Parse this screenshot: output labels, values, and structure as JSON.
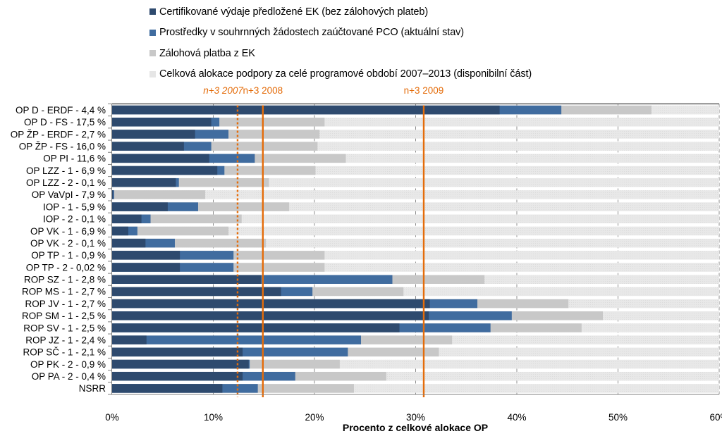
{
  "chart_data": {
    "type": "bar",
    "orientation": "horizontal",
    "stacking": "cumulative-overlay",
    "title": "",
    "xlabel": "Procento z celkové alokace OP",
    "ylabel": "",
    "xlim": [
      0,
      60
    ],
    "x_ticks": [
      0,
      10,
      20,
      30,
      40,
      50,
      60
    ],
    "x_tick_labels": [
      "0%",
      "10%",
      "20%",
      "30%",
      "40%",
      "50%",
      "60%"
    ],
    "grid": "vertical-dashed",
    "legend_position": "top",
    "categories": [
      "OP D - ERDF - 4,4 %",
      "OP D - FS - 17,5 %",
      "OP ŽP - ERDF - 2,7 %",
      "OP ŽP - FS - 16,0 %",
      "OP PI - 11,6 %",
      "OP LZZ - 1 - 6,9 %",
      "OP LZZ - 2 - 0,1 %",
      "OP VaVpI - 7,9 %",
      "IOP - 1 - 5,9 %",
      "IOP - 2 - 0,1 %",
      "OP VK - 1 - 6,9 %",
      "OP VK - 2 - 0,1 %",
      "OP TP - 1 - 0,9 %",
      "OP TP - 2 - 0,02 %",
      "ROP SZ - 1 - 2,8 %",
      "ROP MS - 1 - 2,7 %",
      "ROP JV - 1 - 2,7 %",
      "ROP SM - 1 - 2,5 %",
      "ROP SV - 1 - 2,5 %",
      "ROP JZ - 1 - 2,4 %",
      "ROP SČ - 1 - 2,1 %",
      "OP PK - 2 - 0,9 %",
      "OP PA - 2 - 0,4 %",
      "NSRR"
    ],
    "series": [
      {
        "name": "Certifikované výdaje předložené EK (bez zálohových plateb)",
        "color": "#2e4a6e",
        "cumulative_end_values": [
          38.3,
          9.8,
          8.2,
          7.1,
          9.6,
          10.4,
          6.3,
          0.1,
          5.5,
          2.9,
          1.6,
          3.3,
          6.7,
          6.7,
          14.7,
          16.7,
          31.4,
          31.3,
          28.4,
          3.4,
          12.9,
          13.5,
          12.9,
          10.9
        ]
      },
      {
        "name": "Prostředky v souhrnných žádostech zaúčtované PCO (aktuální stav)",
        "color": "#406c9f",
        "cumulative_end_values": [
          44.4,
          10.6,
          11.5,
          9.8,
          14.1,
          11.1,
          6.6,
          0.2,
          8.5,
          3.8,
          2.5,
          6.2,
          12.0,
          12.0,
          27.7,
          19.8,
          36.1,
          39.5,
          37.4,
          24.6,
          23.3,
          13.6,
          18.1,
          14.4
        ]
      },
      {
        "name": "Zálohová platba z EK",
        "color": "#c8c8c8",
        "cumulative_end_values": [
          53.3,
          21.0,
          20.5,
          20.3,
          23.1,
          20.1,
          15.5,
          9.2,
          17.5,
          12.8,
          11.5,
          15.2,
          21.0,
          21.0,
          36.8,
          28.8,
          45.1,
          48.5,
          46.4,
          33.6,
          32.3,
          22.5,
          27.1,
          23.9
        ]
      },
      {
        "name": "Celková alokace podpory za celé programové období 2007–2013 (disponibilní část)",
        "color": "#e6e6e6",
        "cumulative_end_values": [
          60,
          60,
          60,
          60,
          60,
          60,
          60,
          60,
          60,
          60,
          60,
          60,
          60,
          60,
          60,
          60,
          60,
          60,
          60,
          60,
          60,
          60,
          60,
          60
        ]
      }
    ],
    "reference_lines": [
      {
        "label": "n+3 2007",
        "value": 12.4,
        "style": "dotted",
        "italic": true,
        "color": "#e46c0a"
      },
      {
        "label": "n+3 2008",
        "value": 14.9,
        "style": "solid",
        "italic": false,
        "color": "#e46c0a"
      },
      {
        "label": "n+3 2009",
        "value": 30.8,
        "style": "solid",
        "italic": false,
        "color": "#e46c0a"
      }
    ]
  }
}
